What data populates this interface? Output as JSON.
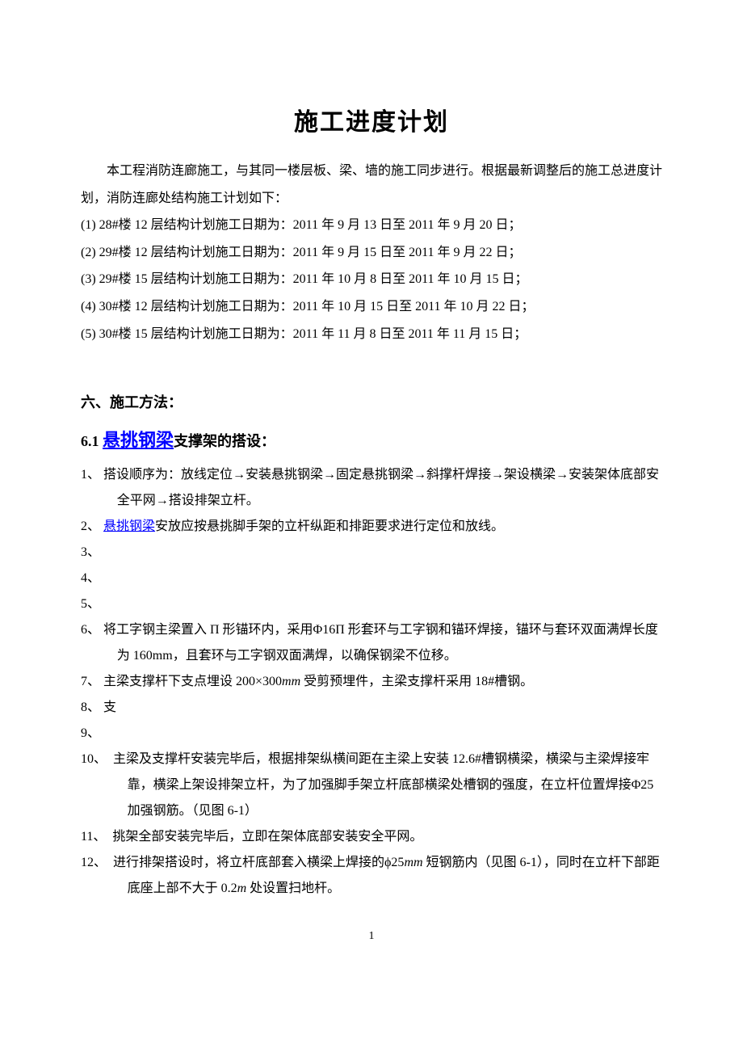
{
  "title": "施工进度计划",
  "intro": "本工程消防连廊施工，与其同一楼层板、梁、墙的施工同步进行。根据最新调整后的施工总进度计划，消防连廊处结构施工计划如下：",
  "plans": [
    "(1) 28#楼 12 层结构计划施工日期为：2011 年 9 月 13 日至 2011 年 9 月 20 日；",
    "(2) 29#楼 12 层结构计划施工日期为：2011 年 9 月 15 日至 2011 年 9 月 22 日；",
    "(3) 29#楼 15 层结构计划施工日期为：2011 年 10 月 8 日至 2011 年 10 月 15 日；",
    "(4) 30#楼 12 层结构计划施工日期为：2011 年 10 月 15 日至 2011 年 10 月 22 日；",
    "(5) 30#楼 15 层结构计划施工日期为：2011 年 11 月 8 日至 2011 年 11 月 15 日；"
  ],
  "section6_heading": "六、施工方法：",
  "sub61_num": "6.1 ",
  "sub61_link": "悬挑钢梁",
  "sub61_tail": "支撑架的搭设：",
  "methods": {
    "m1_pre": "1、 搭设顺序为：放线定位→安装悬挑钢梁→固定悬挑钢梁→斜撑杆焊接→架设横梁→安装架体底部安全平网→搭设排架立杆。",
    "m2_pre": "2、 ",
    "m2_link": "悬挑钢梁",
    "m2_post": "安放应按悬挑脚手架的立杆纵距和排距要求进行定位和放线。",
    "m3": "3、",
    "m4": "4、",
    "m5": "5、",
    "m6": "6、 将工字钢主梁置入 Π 形锚环内，采用Φ16Π 形套环与工字钢和锚环焊接，锚环与套环双面满焊长度为 160mm，且套环与工字钢双面满焊，以确保钢梁不位移。",
    "m7_pre": "7、 主梁支撑杆下支点埋设 200×300",
    "m7_mm": "mm",
    "m7_post": " 受剪预埋件，主梁支撑杆采用 18#槽钢。",
    "m8": "8、 支",
    "m9": "9、",
    "m10": "10、　主梁及支撑杆安装完毕后，根据排架纵横间距在主梁上安装 12.6#槽钢横梁，横梁与主梁焊接牢靠，横梁上架设排架立杆，为了加强脚手架立杆底部横梁处槽钢的强度，在立杆位置焊接Φ25 加强钢筋。（见图 6-1）",
    "m11": "11、　挑架全部安装完毕后，立即在架体底部安装安全平网。",
    "m12_pre": "12、　进行排架搭设时，将立杆底部套入横梁上焊接的ϕ25",
    "m12_mm": "mm",
    "m12_mid": " 短钢筋内（见图 6-1），同时在立杆下部距底座上部不大于 0.2",
    "m12_m": "m",
    "m12_post": " 处设置扫地杆。"
  },
  "pageNumber": "1",
  "colors": {
    "text": "#000000",
    "link": "#0000ff",
    "background": "#ffffff"
  }
}
